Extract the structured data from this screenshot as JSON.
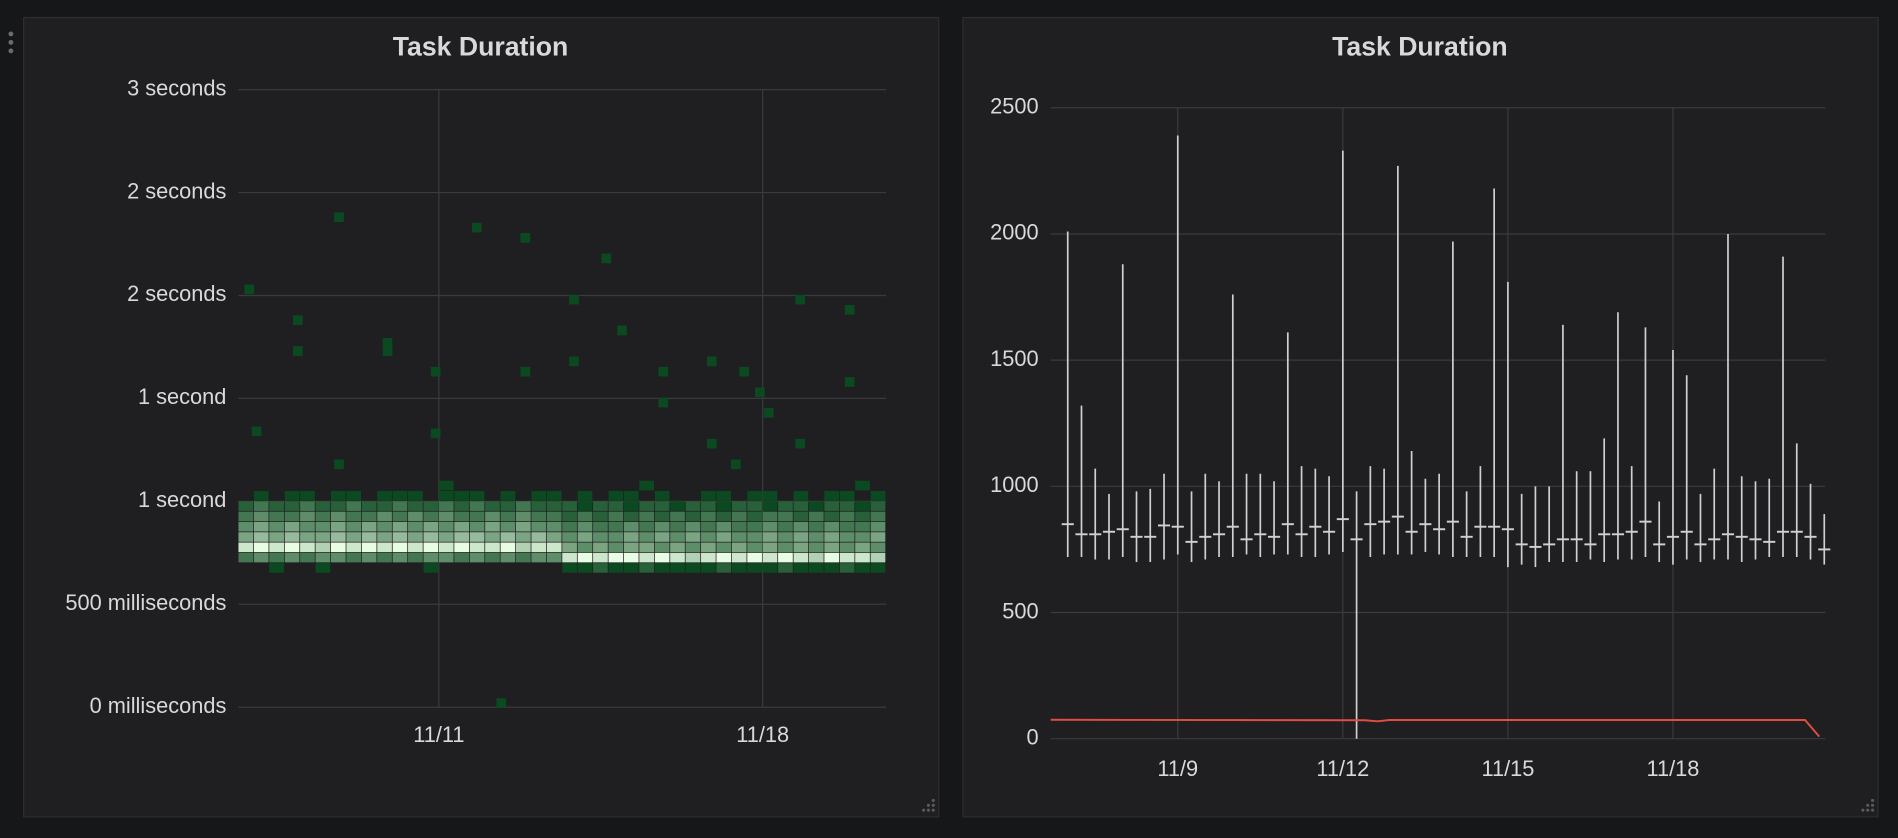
{
  "chart_data": [
    {
      "type": "heatmap",
      "title": "Task Duration",
      "xlim": [
        6.667,
        20.667
      ],
      "ylim": [
        0,
        3
      ],
      "xticks": [
        {
          "value": 11,
          "label": "11/11"
        },
        {
          "value": 18,
          "label": "11/18"
        }
      ],
      "yticks": [
        {
          "value": 0,
          "label": "0 milliseconds"
        },
        {
          "value": 0.5,
          "label": "500 milliseconds"
        },
        {
          "value": 1,
          "label": "1 second"
        },
        {
          "value": 1.5,
          "label": "1 second"
        },
        {
          "value": 2,
          "label": "2 seconds"
        },
        {
          "value": 2.5,
          "label": "2 seconds"
        },
        {
          "value": 3,
          "label": "3 seconds"
        }
      ],
      "grid": true,
      "colors": [
        "#0b4a20",
        "#e9fde4"
      ],
      "xbins": [
        6.667,
        7,
        7.333,
        7.667,
        8,
        8.333,
        8.667,
        9,
        9.333,
        9.667,
        10,
        10.333,
        10.667,
        11,
        11.333,
        11.667,
        12,
        12.333,
        12.667,
        13,
        13.333,
        13.667,
        14,
        14.333,
        14.667,
        15,
        15.333,
        15.667,
        16,
        16.333,
        16.667,
        17,
        17.333,
        17.667,
        18,
        18.333,
        18.667,
        19,
        19.333,
        19.667,
        20,
        20.333,
        20.667
      ],
      "ybins": [
        0.65,
        0.7,
        0.75,
        0.8,
        0.85,
        0.9,
        0.95,
        1,
        1.05,
        1.1
      ],
      "counts": [
        [
          0,
          0,
          1,
          0,
          0,
          1,
          0,
          0,
          0,
          0,
          0,
          0,
          1,
          0,
          0,
          0,
          0,
          0,
          0,
          0,
          0,
          1,
          1,
          2,
          1,
          1,
          2,
          1,
          1,
          1,
          1,
          2,
          1,
          1,
          1,
          2,
          1,
          1,
          1,
          2,
          1,
          1
        ],
        [
          3,
          4,
          3,
          4,
          3,
          4,
          4,
          3,
          4,
          3,
          4,
          3,
          4,
          4,
          3,
          4,
          3,
          4,
          3,
          4,
          4,
          8,
          9,
          8,
          9,
          9,
          8,
          9,
          8,
          7,
          8,
          9,
          8,
          9,
          8,
          9,
          8,
          7,
          9,
          8,
          8,
          7
        ],
        [
          8,
          9,
          8,
          9,
          8,
          7,
          9,
          8,
          9,
          8,
          9,
          8,
          9,
          8,
          9,
          8,
          8,
          9,
          7,
          8,
          8,
          5,
          4,
          5,
          4,
          5,
          5,
          4,
          5,
          4,
          5,
          4,
          5,
          4,
          5,
          4,
          5,
          4,
          5,
          4,
          5,
          4
        ],
        [
          5,
          6,
          5,
          6,
          5,
          5,
          6,
          5,
          6,
          5,
          6,
          5,
          6,
          5,
          6,
          6,
          5,
          6,
          5,
          6,
          5,
          4,
          5,
          4,
          4,
          5,
          4,
          5,
          4,
          5,
          4,
          5,
          4,
          4,
          5,
          4,
          5,
          4,
          5,
          4,
          4,
          5
        ],
        [
          4,
          5,
          4,
          5,
          4,
          4,
          5,
          4,
          5,
          4,
          5,
          4,
          5,
          4,
          5,
          4,
          5,
          4,
          5,
          4,
          4,
          3,
          4,
          3,
          3,
          4,
          3,
          4,
          3,
          4,
          3,
          4,
          3,
          3,
          4,
          3,
          4,
          3,
          4,
          3,
          3,
          4
        ],
        [
          3,
          4,
          3,
          3,
          4,
          3,
          4,
          3,
          3,
          4,
          3,
          4,
          3,
          4,
          3,
          3,
          4,
          3,
          4,
          3,
          3,
          2,
          3,
          2,
          3,
          2,
          3,
          2,
          3,
          2,
          3,
          2,
          3,
          2,
          3,
          3,
          2,
          3,
          2,
          3,
          2,
          3
        ],
        [
          2,
          3,
          2,
          2,
          3,
          2,
          2,
          3,
          2,
          2,
          3,
          2,
          2,
          3,
          2,
          3,
          2,
          2,
          3,
          2,
          2,
          2,
          1,
          2,
          2,
          1,
          2,
          2,
          1,
          2,
          2,
          1,
          2,
          2,
          1,
          2,
          2,
          1,
          2,
          2,
          1,
          2
        ],
        [
          0,
          1,
          0,
          1,
          1,
          0,
          1,
          1,
          0,
          1,
          1,
          1,
          0,
          1,
          1,
          1,
          0,
          1,
          0,
          1,
          1,
          0,
          1,
          0,
          1,
          1,
          0,
          1,
          0,
          0,
          1,
          1,
          0,
          1,
          1,
          0,
          1,
          0,
          1,
          1,
          0,
          1
        ],
        [
          0,
          0,
          0,
          0,
          0,
          0,
          0,
          0,
          0,
          0,
          0,
          0,
          0,
          1,
          0,
          0,
          0,
          0,
          0,
          0,
          0,
          0,
          0,
          0,
          0,
          0,
          1,
          0,
          0,
          0,
          0,
          0,
          0,
          0,
          0,
          0,
          0,
          0,
          0,
          0,
          1,
          0
        ]
      ],
      "sparse_cells": {
        "x": [
          6.9,
          7.06,
          7.95,
          7.95,
          8.84,
          8.84,
          9.89,
          9.89,
          10.93,
          10.93,
          11.82,
          12.35,
          12.87,
          12.87,
          13.92,
          13.92,
          14.62,
          14.96,
          15.85,
          15.85,
          16.9,
          16.9,
          17.42,
          17.6,
          17.94,
          18.13,
          18.81,
          18.81,
          19.88,
          19.88
        ],
        "y": [
          2.03,
          1.34,
          1.88,
          1.73,
          2.38,
          1.18,
          1.77,
          1.73,
          1.63,
          1.33,
          2.33,
          0.02,
          2.28,
          1.63,
          1.98,
          1.68,
          2.18,
          1.83,
          1.63,
          1.48,
          1.68,
          1.28,
          1.18,
          1.63,
          1.53,
          1.43,
          1.98,
          1.28,
          1.93,
          1.58
        ]
      }
    },
    {
      "type": "box",
      "title": "Task Duration",
      "xlim": [
        6.69,
        20.77
      ],
      "ylim": [
        0,
        2500
      ],
      "xticks": [
        {
          "value": 9,
          "label": "11/9"
        },
        {
          "value": 12,
          "label": "11/12"
        },
        {
          "value": 15,
          "label": "11/15"
        },
        {
          "value": 18,
          "label": "11/18"
        }
      ],
      "yticks": [
        0,
        500,
        1000,
        1500,
        2000,
        2500
      ],
      "grid": true,
      "x": [
        7,
        7.25,
        7.5,
        7.75,
        8,
        8.25,
        8.5,
        8.75,
        9,
        9.25,
        9.5,
        9.75,
        10,
        10.25,
        10.5,
        10.75,
        11,
        11.25,
        11.5,
        11.75,
        12,
        12.25,
        12.5,
        12.75,
        13,
        13.25,
        13.5,
        13.75,
        14,
        14.25,
        14.5,
        14.75,
        15,
        15.25,
        15.5,
        15.75,
        16,
        16.25,
        16.5,
        16.75,
        17,
        17.25,
        17.5,
        17.75,
        18,
        18.25,
        18.5,
        18.75,
        19,
        19.25,
        19.5,
        19.75,
        20,
        20.25,
        20.5,
        20.75
      ],
      "boxes": {
        "color": "#cfd0d1",
        "high": [
          2010,
          1320,
          1070,
          970,
          1880,
          980,
          990,
          1050,
          2390,
          980,
          1050,
          1020,
          1760,
          1050,
          1050,
          1020,
          1610,
          1080,
          1070,
          1040,
          2330,
          980,
          1080,
          1070,
          2270,
          1140,
          1030,
          1050,
          1970,
          980,
          1080,
          2180,
          1810,
          970,
          1000,
          1000,
          1640,
          1060,
          1060,
          1190,
          1690,
          1080,
          1630,
          940,
          1540,
          1440,
          970,
          1070,
          2000,
          1040,
          1020,
          1030,
          1910,
          1170,
          1010,
          890
        ],
        "low": [
          720,
          720,
          710,
          710,
          720,
          700,
          700,
          710,
          730,
          700,
          710,
          720,
          720,
          730,
          720,
          730,
          730,
          720,
          720,
          730,
          740,
          0,
          720,
          730,
          730,
          730,
          740,
          730,
          720,
          720,
          720,
          720,
          680,
          690,
          680,
          700,
          700,
          700,
          710,
          700,
          710,
          710,
          720,
          700,
          690,
          710,
          700,
          710,
          710,
          700,
          710,
          720,
          720,
          720,
          710,
          690
        ],
        "mid": [
          850,
          810,
          810,
          820,
          830,
          800,
          800,
          845,
          840,
          780,
          800,
          810,
          840,
          790,
          810,
          800,
          850,
          810,
          840,
          820,
          870,
          790,
          850,
          860,
          880,
          820,
          850,
          830,
          860,
          800,
          840,
          840,
          830,
          770,
          760,
          770,
          790,
          790,
          770,
          810,
          810,
          820,
          860,
          770,
          800,
          820,
          770,
          790,
          810,
          800,
          790,
          780,
          820,
          820,
          800,
          750
        ]
      },
      "series": [
        {
          "color": "#e24d42",
          "x": [
            6.69,
            12.4,
            12.63,
            12.85,
            20.4,
            20.66
          ],
          "values": [
            75,
            73,
            69,
            74,
            74,
            8
          ]
        }
      ]
    }
  ]
}
